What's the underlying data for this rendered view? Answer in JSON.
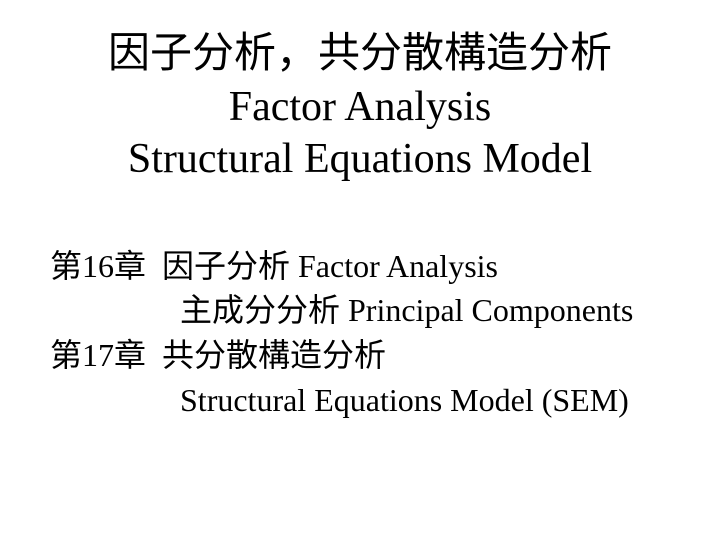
{
  "title": {
    "line1": "因子分析，共分散構造分析",
    "line2": "Factor Analysis",
    "line3": "Structural Equations Model"
  },
  "content": {
    "line1": "第16章  因子分析 Factor Analysis",
    "line2": "主成分分析 Principal Components",
    "line3": "第17章  共分散構造分析",
    "line4": "Structural Equations Model (SEM)"
  },
  "style": {
    "title_fontsize": 42,
    "content_fontsize": 32,
    "text_color": "#000000",
    "background_color": "#ffffff"
  }
}
